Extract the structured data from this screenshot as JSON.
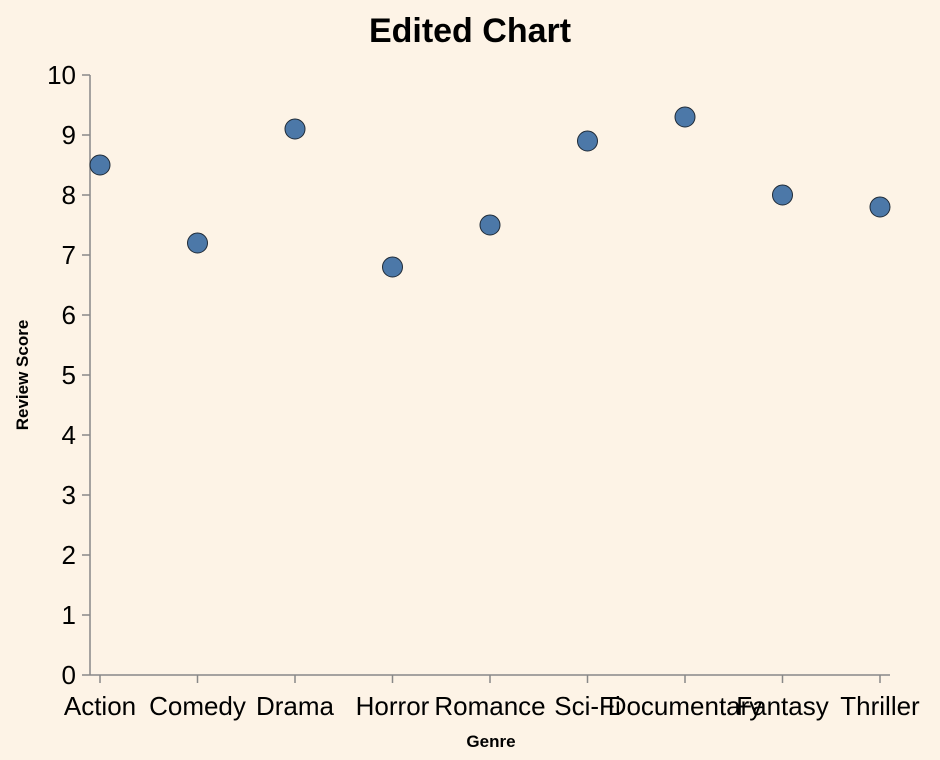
{
  "chart_data": {
    "type": "scatter",
    "title": "Edited Chart",
    "xlabel": "Genre",
    "ylabel": "Review Score",
    "categories": [
      "Action",
      "Comedy",
      "Drama",
      "Horror",
      "Romance",
      "Sci-Fi",
      "Documentary",
      "Fantasy",
      "Thriller"
    ],
    "values": [
      8.5,
      7.2,
      9.1,
      6.8,
      7.5,
      8.9,
      9.3,
      8.0,
      7.8
    ],
    "ylim": [
      0,
      10
    ],
    "yticks": [
      "0",
      "1",
      "2",
      "3",
      "4",
      "5",
      "6",
      "7",
      "8",
      "9",
      "10"
    ],
    "grid": false,
    "point_color": "#4c78a8",
    "background": "#fdf3e6"
  }
}
